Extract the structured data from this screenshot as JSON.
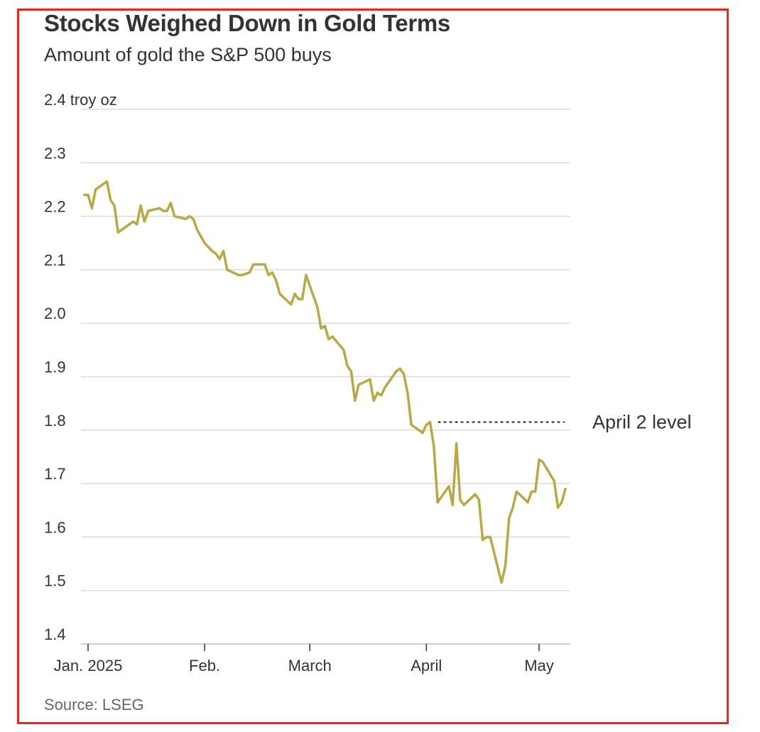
{
  "chart_data": {
    "type": "line",
    "title": "Stocks Weighed Down in Gold Terms",
    "subtitle": "Amount of gold the S&P 500 buys",
    "source": "Source: LSEG",
    "ylabel_unit": "troy oz",
    "ylim": [
      1.4,
      2.4
    ],
    "yticks": [
      {
        "value": 2.4,
        "label": "2.4 troy oz"
      },
      {
        "value": 2.3,
        "label": "2.3"
      },
      {
        "value": 2.2,
        "label": "2.2"
      },
      {
        "value": 2.1,
        "label": "2.1"
      },
      {
        "value": 2.0,
        "label": "2.0"
      },
      {
        "value": 1.9,
        "label": "1.9"
      },
      {
        "value": 1.8,
        "label": "1.8"
      },
      {
        "value": 1.7,
        "label": "1.7"
      },
      {
        "value": 1.6,
        "label": "1.6"
      },
      {
        "value": 1.5,
        "label": "1.5"
      },
      {
        "value": 1.4,
        "label": "1.4"
      }
    ],
    "xlim": [
      "2025-01-01",
      "2025-05-09"
    ],
    "xticks": [
      {
        "date": "2025-01-01",
        "label": "Jan. 2025"
      },
      {
        "date": "2025-02-01",
        "label": "Feb."
      },
      {
        "date": "2025-03-01",
        "label": "March"
      },
      {
        "date": "2025-04-01",
        "label": "April"
      },
      {
        "date": "2025-05-01",
        "label": "May"
      }
    ],
    "grid": true,
    "line_color": "#b9a845",
    "series": [
      {
        "points": [
          [
            "2025-01-00",
            2.24
          ],
          [
            "2025-01-01",
            2.24
          ],
          [
            "2025-01-02",
            2.215
          ],
          [
            "2025-01-03",
            2.25
          ],
          [
            "2025-01-06",
            2.265
          ],
          [
            "2025-01-07",
            2.23
          ],
          [
            "2025-01-08",
            2.22
          ],
          [
            "2025-01-09",
            2.17
          ],
          [
            "2025-01-11",
            2.18
          ],
          [
            "2025-01-13",
            2.19
          ],
          [
            "2025-01-14",
            2.185
          ],
          [
            "2025-01-15",
            2.22
          ],
          [
            "2025-01-16",
            2.19
          ],
          [
            "2025-01-17",
            2.21
          ],
          [
            "2025-01-20",
            2.215
          ],
          [
            "2025-01-21",
            2.21
          ],
          [
            "2025-01-22",
            2.21
          ],
          [
            "2025-01-23",
            2.225
          ],
          [
            "2025-01-24",
            2.2
          ],
          [
            "2025-01-27",
            2.195
          ],
          [
            "2025-01-28",
            2.2
          ],
          [
            "2025-01-29",
            2.195
          ],
          [
            "2025-01-30",
            2.175
          ],
          [
            "2025-02-01",
            2.15
          ],
          [
            "2025-02-03",
            2.135
          ],
          [
            "2025-02-04",
            2.13
          ],
          [
            "2025-02-05",
            2.12
          ],
          [
            "2025-02-06",
            2.135
          ],
          [
            "2025-02-07",
            2.1
          ],
          [
            "2025-02-10",
            2.09
          ],
          [
            "2025-02-11",
            2.09
          ],
          [
            "2025-02-13",
            2.095
          ],
          [
            "2025-02-14",
            2.11
          ],
          [
            "2025-02-17",
            2.11
          ],
          [
            "2025-02-18",
            2.09
          ],
          [
            "2025-02-19",
            2.095
          ],
          [
            "2025-02-20",
            2.08
          ],
          [
            "2025-02-21",
            2.055
          ],
          [
            "2025-02-24",
            2.035
          ],
          [
            "2025-02-25",
            2.055
          ],
          [
            "2025-02-26",
            2.045
          ],
          [
            "2025-02-27",
            2.045
          ],
          [
            "2025-02-28",
            2.09
          ],
          [
            "2025-03-03",
            2.03
          ],
          [
            "2025-03-04",
            1.99
          ],
          [
            "2025-03-05",
            1.995
          ],
          [
            "2025-03-06",
            1.97
          ],
          [
            "2025-03-07",
            1.975
          ],
          [
            "2025-03-10",
            1.95
          ],
          [
            "2025-03-11",
            1.92
          ],
          [
            "2025-03-12",
            1.91
          ],
          [
            "2025-03-13",
            1.855
          ],
          [
            "2025-03-14",
            1.885
          ],
          [
            "2025-03-17",
            1.895
          ],
          [
            "2025-03-18",
            1.855
          ],
          [
            "2025-03-19",
            1.87
          ],
          [
            "2025-03-20",
            1.865
          ],
          [
            "2025-03-21",
            1.88
          ],
          [
            "2025-03-24",
            1.91
          ],
          [
            "2025-03-25",
            1.915
          ],
          [
            "2025-03-26",
            1.905
          ],
          [
            "2025-03-27",
            1.87
          ],
          [
            "2025-03-28",
            1.81
          ],
          [
            "2025-03-31",
            1.795
          ],
          [
            "2025-04-01",
            1.81
          ],
          [
            "2025-04-02",
            1.815
          ],
          [
            "2025-04-03",
            1.77
          ],
          [
            "2025-04-04",
            1.665
          ],
          [
            "2025-04-07",
            1.695
          ],
          [
            "2025-04-08",
            1.66
          ],
          [
            "2025-04-09",
            1.775
          ],
          [
            "2025-04-10",
            1.67
          ],
          [
            "2025-04-11",
            1.66
          ],
          [
            "2025-04-14",
            1.68
          ],
          [
            "2025-04-15",
            1.67
          ],
          [
            "2025-04-16",
            1.595
          ],
          [
            "2025-04-17",
            1.6
          ],
          [
            "2025-04-18",
            1.6
          ],
          [
            "2025-04-21",
            1.515
          ],
          [
            "2025-04-22",
            1.545
          ],
          [
            "2025-04-23",
            1.635
          ],
          [
            "2025-04-24",
            1.655
          ],
          [
            "2025-04-25",
            1.685
          ],
          [
            "2025-04-28",
            1.665
          ],
          [
            "2025-04-29",
            1.685
          ],
          [
            "2025-04-30",
            1.685
          ],
          [
            "2025-05-01",
            1.745
          ],
          [
            "2025-05-02",
            1.74
          ],
          [
            "2025-05-05",
            1.705
          ],
          [
            "2025-05-06",
            1.655
          ],
          [
            "2025-05-07",
            1.665
          ],
          [
            "2025-05-08",
            1.69
          ]
        ]
      }
    ],
    "reference_line": {
      "label": "April 2 level",
      "value": 1.815,
      "from": "2025-04-02",
      "to": "2025-05-08",
      "style": "dotted"
    }
  }
}
